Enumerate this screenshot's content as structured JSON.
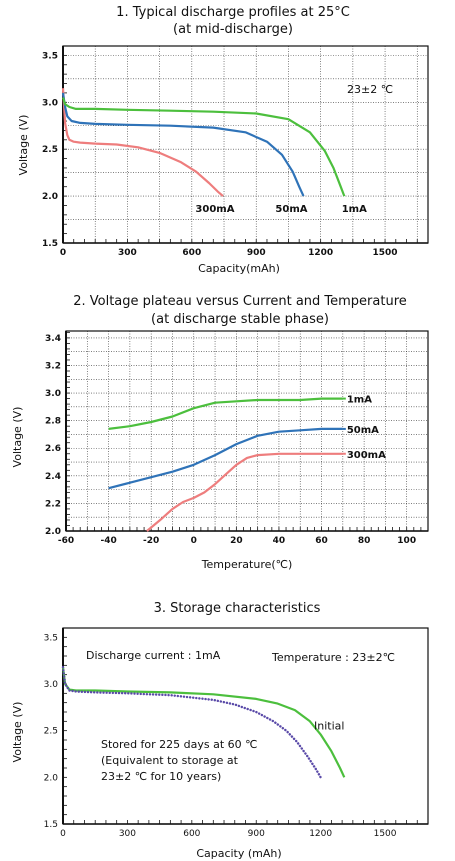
{
  "colors": {
    "red": "#ee7d7d",
    "blue": "#2f73b8",
    "green": "#4cbf3d",
    "purple": "#5a4aa8"
  },
  "chart_data": [
    {
      "type": "line",
      "title": "1. Typical discharge profiles at 25°C",
      "subtitle": "(at mid-discharge)",
      "xlabel": "Capacity(mAh)",
      "ylabel": "Voltage (V)",
      "xlim": [
        0,
        1700
      ],
      "ylim": [
        1.5,
        3.6
      ],
      "xticks": [
        "0",
        "300",
        "600",
        "900",
        "1200",
        "1500"
      ],
      "yticks": [
        "1.5",
        "2.0",
        "2.5",
        "3.0",
        "3.5"
      ],
      "grid": true,
      "annotation": "23±2 ℃",
      "series": [
        {
          "name": "300mA",
          "color": "red",
          "x": [
            0,
            10,
            20,
            30,
            50,
            80,
            150,
            250,
            350,
            450,
            550,
            620,
            680,
            720,
            745
          ],
          "y": [
            3.15,
            2.78,
            2.65,
            2.6,
            2.58,
            2.57,
            2.56,
            2.55,
            2.52,
            2.46,
            2.36,
            2.26,
            2.14,
            2.05,
            2.0
          ]
        },
        {
          "name": "50mA",
          "color": "blue",
          "x": [
            0,
            10,
            20,
            40,
            80,
            150,
            300,
            500,
            700,
            850,
            950,
            1020,
            1070,
            1100,
            1120
          ],
          "y": [
            3.1,
            2.95,
            2.85,
            2.8,
            2.78,
            2.77,
            2.76,
            2.75,
            2.73,
            2.68,
            2.58,
            2.44,
            2.26,
            2.1,
            2.0
          ]
        },
        {
          "name": "1mA",
          "color": "green",
          "x": [
            0,
            10,
            30,
            60,
            150,
            300,
            500,
            700,
            900,
            1050,
            1150,
            1220,
            1260,
            1290,
            1310
          ],
          "y": [
            3.05,
            2.98,
            2.95,
            2.93,
            2.93,
            2.92,
            2.91,
            2.9,
            2.88,
            2.82,
            2.68,
            2.48,
            2.3,
            2.12,
            2.0
          ]
        }
      ]
    },
    {
      "type": "line",
      "title": "2. Voltage plateau versus Current and Temperature",
      "subtitle": "(at discharge stable phase)",
      "xlabel": "Temperature(℃)",
      "ylabel": "Voltage (V)",
      "xlim": [
        -60,
        110
      ],
      "ylim": [
        2.0,
        3.45
      ],
      "xticks": [
        "-60",
        "-40",
        "-20",
        "0",
        "20",
        "40",
        "60",
        "80",
        "100"
      ],
      "yticks": [
        "2.0",
        "2.2",
        "2.4",
        "2.6",
        "2.8",
        "3.0",
        "3.2",
        "3.4"
      ],
      "grid": true,
      "series": [
        {
          "name": "1mA",
          "color": "green",
          "x": [
            -40,
            -30,
            -20,
            -10,
            0,
            10,
            20,
            30,
            40,
            50,
            60,
            70
          ],
          "y": [
            2.74,
            2.76,
            2.79,
            2.83,
            2.89,
            2.93,
            2.94,
            2.95,
            2.95,
            2.95,
            2.96,
            2.96
          ]
        },
        {
          "name": "50mA",
          "color": "blue",
          "x": [
            -40,
            -30,
            -20,
            -10,
            0,
            10,
            20,
            30,
            40,
            50,
            60,
            70
          ],
          "y": [
            2.31,
            2.35,
            2.39,
            2.43,
            2.48,
            2.55,
            2.63,
            2.69,
            2.72,
            2.73,
            2.74,
            2.74
          ]
        },
        {
          "name": "300mA",
          "color": "red",
          "x": [
            -22,
            -15,
            -10,
            -5,
            0,
            5,
            10,
            15,
            20,
            25,
            30,
            40,
            50,
            60,
            70
          ],
          "y": [
            2.0,
            2.09,
            2.16,
            2.21,
            2.24,
            2.28,
            2.34,
            2.41,
            2.48,
            2.53,
            2.55,
            2.56,
            2.56,
            2.56,
            2.56
          ]
        }
      ]
    },
    {
      "type": "line",
      "title": "3. Storage characteristics",
      "xlabel": "Capacity (mAh)",
      "ylabel": "Voltage (V)",
      "xlim": [
        0,
        1700
      ],
      "ylim": [
        1.5,
        3.6
      ],
      "xticks": [
        "0",
        "300",
        "600",
        "900",
        "1200",
        "1500"
      ],
      "yticks": [
        "1.5",
        "2.0",
        "2.5",
        "3.0",
        "3.5"
      ],
      "grid": false,
      "notes": {
        "discharge": "Discharge current : 1mA",
        "temperature": "Temperature : 23±2℃",
        "stored_1": "Stored for 225 days at 60 ℃",
        "stored_2": "(Equivalent to storage at",
        "stored_3": "23±2 ℃ for 10 years)"
      },
      "series": [
        {
          "name": "Initial",
          "color": "green",
          "x": [
            0,
            10,
            30,
            60,
            150,
            300,
            500,
            700,
            900,
            1000,
            1080,
            1150,
            1200,
            1250,
            1290,
            1310
          ],
          "y": [
            3.18,
            3.0,
            2.94,
            2.93,
            2.93,
            2.92,
            2.91,
            2.89,
            2.84,
            2.79,
            2.72,
            2.6,
            2.46,
            2.28,
            2.1,
            2.0
          ]
        },
        {
          "name": "Stored",
          "color": "purple",
          "dotted": true,
          "x": [
            0,
            10,
            30,
            60,
            150,
            300,
            500,
            700,
            800,
            900,
            980,
            1040,
            1090,
            1140,
            1180,
            1200
          ],
          "y": [
            3.18,
            3.0,
            2.93,
            2.92,
            2.91,
            2.9,
            2.88,
            2.83,
            2.78,
            2.7,
            2.6,
            2.5,
            2.38,
            2.22,
            2.08,
            2.0
          ]
        }
      ]
    }
  ]
}
